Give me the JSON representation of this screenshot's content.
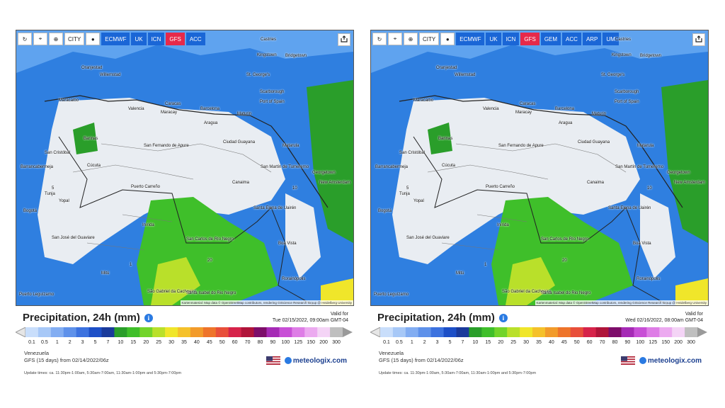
{
  "panels": [
    {
      "toolbar": {
        "buttons": [
          "↻",
          "⌖",
          "⊕",
          "CITY",
          "●"
        ],
        "models": [
          {
            "label": "ECMWF",
            "active": false
          },
          {
            "label": "UK",
            "active": false
          },
          {
            "label": "ICN",
            "active": false
          },
          {
            "label": "GFS",
            "active": true
          },
          {
            "label": "ACC",
            "active": false
          }
        ]
      },
      "cities": [
        "Castries",
        "Kingstown",
        "Bridgetown",
        "Oranjestad",
        "Willemstad",
        "St. George's",
        "Scarborough",
        "Port of Spain",
        "Maracaibo",
        "Valencia",
        "Caracas",
        "Maracay",
        "Barcelona",
        "Maturin",
        "Aragua",
        "San Cristóbal",
        "Barinas",
        "San Fernando de Apure",
        "Ciudad Guayana",
        "Matarula",
        "Georgetown",
        "New Amsterdam",
        "Barrancabermeja",
        "Cúcuta",
        "Tunja",
        "Yopal",
        "Puerto Carreño",
        "San Martín de Tumeremo",
        "Canaima",
        "Bogotá",
        "Santa Elena de Uairén",
        "Inírida",
        "San José del Guaviare",
        "Boa Vista",
        "San Carlos de Río Negro",
        "Mitú",
        "Rorainópolis",
        "São Gabriel da Cachoeira",
        "Santa Isabel do Rio Negro",
        "Puerto Leguízamo"
      ],
      "map_labels": [
        "1",
        "5",
        "10",
        "20"
      ],
      "attribution": "Kartenmaterial: Map data © OpenStreetMap contributors, rendering GIScience Research Group @ Heidelberg University",
      "title": "Precipitation, 24h (mm)",
      "valid_for": "Valid for",
      "valid_time": "Tue 02/15/2022, 09:00am GMT-04",
      "region": "Venezuela",
      "model_run": "GFS (15 days) from 02/14/2022/06z",
      "update_times": "Update times: ca. 11:30pm-1:00am, 5:30am-7:00am, 11:30am-1:00pm and 5:30pm-7:00pm",
      "brand": "meteologix.com"
    },
    {
      "toolbar": {
        "buttons": [
          "↻",
          "⌖",
          "⊕",
          "CITY",
          "●"
        ],
        "models": [
          {
            "label": "ECMWF",
            "active": false
          },
          {
            "label": "UK",
            "active": false
          },
          {
            "label": "ICN",
            "active": false
          },
          {
            "label": "GFS",
            "active": true
          },
          {
            "label": "GEM",
            "active": false
          },
          {
            "label": "ACC",
            "active": false
          },
          {
            "label": "ARP",
            "active": false
          },
          {
            "label": "UM",
            "active": false
          }
        ]
      },
      "cities": [
        "Castries",
        "Kingstown",
        "Bridgetown",
        "Oranjestad",
        "Willemstad",
        "St. George's",
        "Scarborough",
        "Port of Spain",
        "Maracaibo",
        "Valencia",
        "Caracas",
        "Maracay",
        "Barcelona",
        "Maturin",
        "Aragua",
        "San Cristóbal",
        "Barinas",
        "San Fernando de Apure",
        "Ciudad Guayana",
        "Matarula",
        "Georgetown",
        "New Amsterdam",
        "Barrancabermeja",
        "Cúcuta",
        "Tunja",
        "Yopal",
        "Puerto Carreño",
        "San Martín de Tumeremo",
        "Canaima",
        "Bogotá",
        "Santa Elena de Uairén",
        "Inírida",
        "San José del Guaviare",
        "Boa Vista",
        "San Carlos de Río Negro",
        "Mitú",
        "Rorainópolis",
        "São Gabriel da Cachoeira",
        "Santa Isabel do Rio Negro",
        "Puerto Leguízamo"
      ],
      "map_labels": [
        "1",
        "5",
        "10",
        "20"
      ],
      "attribution": "Kartenmaterial: Map data © OpenStreetMap contributors, rendering GIScience Research Group @ Heidelberg University",
      "title": "Precipitation, 24h (mm)",
      "valid_for": "Valid for",
      "valid_time": "Wed 02/16/2022, 08:00am GMT-04",
      "region": "Venezuela",
      "model_run": "GFS (15 days) from 02/14/2022/06z",
      "update_times": "Update times: ca. 11:30pm-1:00am, 5:30am-7:00am, 11:30am-1:00pm and 5:30pm-7:00pm",
      "brand": "meteologix.com"
    }
  ],
  "scale": {
    "ticks": [
      "0.1",
      "0.5",
      "1",
      "2",
      "3",
      "5",
      "7",
      "10",
      "15",
      "20",
      "25",
      "30",
      "35",
      "40",
      "45",
      "50",
      "60",
      "70",
      "80",
      "90",
      "100",
      "125",
      "150",
      "200",
      "300"
    ],
    "colors": [
      "#c9defb",
      "#a7c8f7",
      "#82adf2",
      "#5e91ea",
      "#3c72df",
      "#1d4fc7",
      "#1a3a9b",
      "#2a9e2a",
      "#3fbf2a",
      "#72d42a",
      "#b9e02a",
      "#f0e62a",
      "#f5c12a",
      "#f29b2a",
      "#ee742a",
      "#e84f3a",
      "#d6234a",
      "#b0143a",
      "#7d0d6a",
      "#a52ab5",
      "#c84fd6",
      "#de7de6",
      "#ecaaf0",
      "#f4d4f6",
      "#bfbfbf"
    ]
  },
  "flag_colors": {
    "red": "#b22234",
    "blue": "#3c3b6e"
  }
}
